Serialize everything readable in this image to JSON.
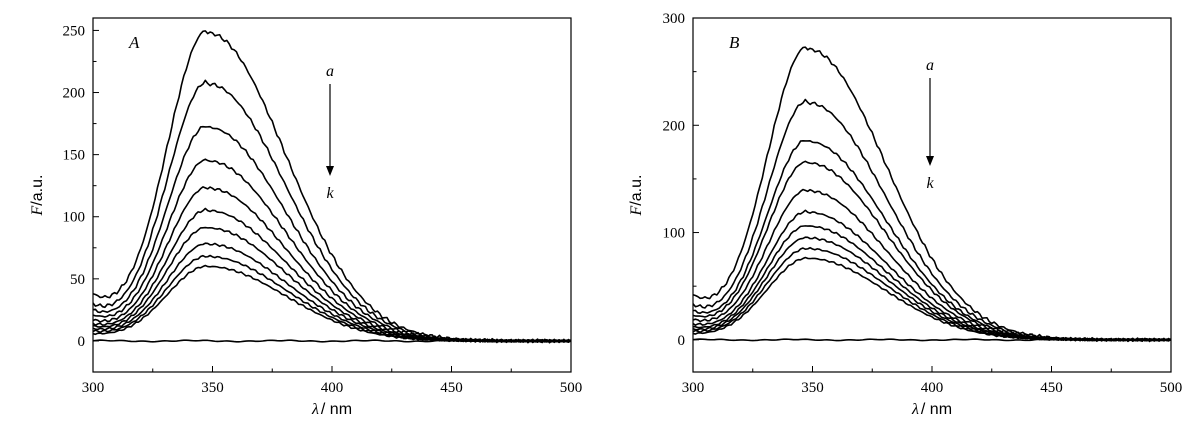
{
  "chart_data": [
    {
      "type": "line",
      "panel_label": "A",
      "xlabel_symbol": "λ",
      "xlabel_unit": "/ nm",
      "ylabel_symbol": "F",
      "ylabel_unit": "/a.u.",
      "xlim": [
        300,
        500
      ],
      "ylim": [
        -25,
        260
      ],
      "xticks": [
        300,
        350,
        400,
        450,
        500
      ],
      "yticks": [
        0,
        50,
        100,
        150,
        200,
        250
      ],
      "arrow_start_label": "a",
      "arrow_end_label": "k",
      "curve_shape": {
        "peak_x": 348,
        "left_width": 24,
        "right_width": 46
      },
      "series": [
        {
          "peak": 248,
          "base": 38
        },
        {
          "peak": 207,
          "base": 30
        },
        {
          "peak": 172,
          "base": 25
        },
        {
          "peak": 145,
          "base": 21
        },
        {
          "peak": 123,
          "base": 17
        },
        {
          "peak": 105,
          "base": 14
        },
        {
          "peak": 91,
          "base": 12
        },
        {
          "peak": 78,
          "base": 10
        },
        {
          "peak": 68,
          "base": 8
        },
        {
          "peak": 60,
          "base": 6
        },
        {
          "peak": 0,
          "base": 0
        }
      ]
    },
    {
      "type": "line",
      "panel_label": "B",
      "xlabel_symbol": "λ",
      "xlabel_unit": "/ nm",
      "ylabel_symbol": "F",
      "ylabel_unit": "/a.u.",
      "xlim": [
        300,
        500
      ],
      "ylim": [
        -30,
        300
      ],
      "xticks": [
        300,
        350,
        400,
        450,
        500
      ],
      "yticks": [
        0,
        100,
        200,
        300
      ],
      "arrow_start_label": "a",
      "arrow_end_label": "k",
      "curve_shape": {
        "peak_x": 348,
        "left_width": 24,
        "right_width": 46
      },
      "series": [
        {
          "peak": 271,
          "base": 42
        },
        {
          "peak": 221,
          "base": 33
        },
        {
          "peak": 185,
          "base": 27
        },
        {
          "peak": 165,
          "base": 23
        },
        {
          "peak": 139,
          "base": 19
        },
        {
          "peak": 119,
          "base": 15
        },
        {
          "peak": 106,
          "base": 12
        },
        {
          "peak": 95,
          "base": 10
        },
        {
          "peak": 85,
          "base": 8
        },
        {
          "peak": 76,
          "base": 6
        },
        {
          "peak": 0,
          "base": 0
        }
      ]
    }
  ]
}
